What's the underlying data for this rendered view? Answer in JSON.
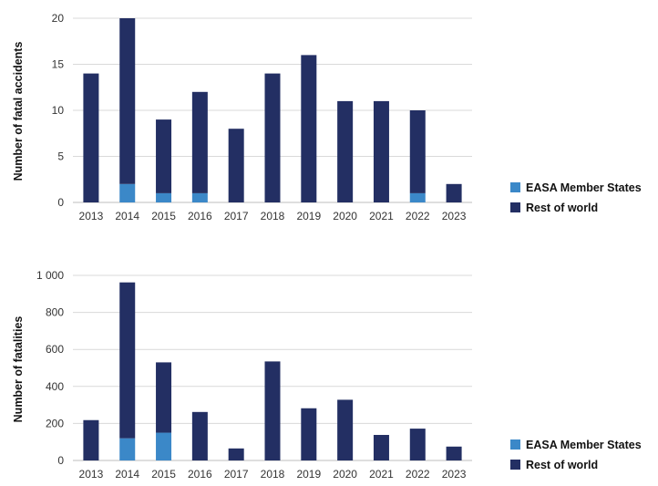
{
  "colors": {
    "easa": "#3b88c8",
    "row": "#232f63"
  },
  "chart_data": [
    {
      "type": "bar",
      "stacked": true,
      "title": "",
      "xlabel": "",
      "ylabel": "Number of fatal accidents",
      "ylim": [
        0,
        20
      ],
      "yticks": [
        0,
        5,
        10,
        15,
        20
      ],
      "ytick_labels": [
        "0",
        "5",
        "10",
        "15",
        "20"
      ],
      "grid": true,
      "legend_position": "right",
      "categories": [
        "2013",
        "2014",
        "2015",
        "2016",
        "2017",
        "2018",
        "2019",
        "2020",
        "2021",
        "2022",
        "2023"
      ],
      "series": [
        {
          "name": "EASA Member States",
          "values": [
            0,
            2,
            1,
            1,
            0,
            0,
            0,
            0,
            0,
            1,
            0
          ]
        },
        {
          "name": "Rest of world",
          "values": [
            14,
            18,
            8,
            11,
            8,
            14,
            16,
            11,
            11,
            9,
            2
          ]
        }
      ]
    },
    {
      "type": "bar",
      "stacked": true,
      "title": "",
      "xlabel": "",
      "ylabel": "Number of fatalities",
      "ylim": [
        0,
        1000
      ],
      "yticks": [
        0,
        200,
        400,
        600,
        800,
        1000
      ],
      "ytick_labels": [
        "0",
        "200",
        "400",
        "600",
        "800",
        "1 000"
      ],
      "grid": true,
      "legend_position": "right",
      "categories": [
        "2013",
        "2014",
        "2015",
        "2016",
        "2017",
        "2018",
        "2019",
        "2020",
        "2021",
        "2022",
        "2023"
      ],
      "series": [
        {
          "name": "EASA Member States",
          "values": [
            0,
            120,
            150,
            0,
            0,
            0,
            0,
            0,
            0,
            0,
            0
          ]
        },
        {
          "name": "Rest of world",
          "values": [
            218,
            842,
            380,
            262,
            65,
            535,
            282,
            328,
            138,
            172,
            75
          ]
        }
      ]
    }
  ]
}
